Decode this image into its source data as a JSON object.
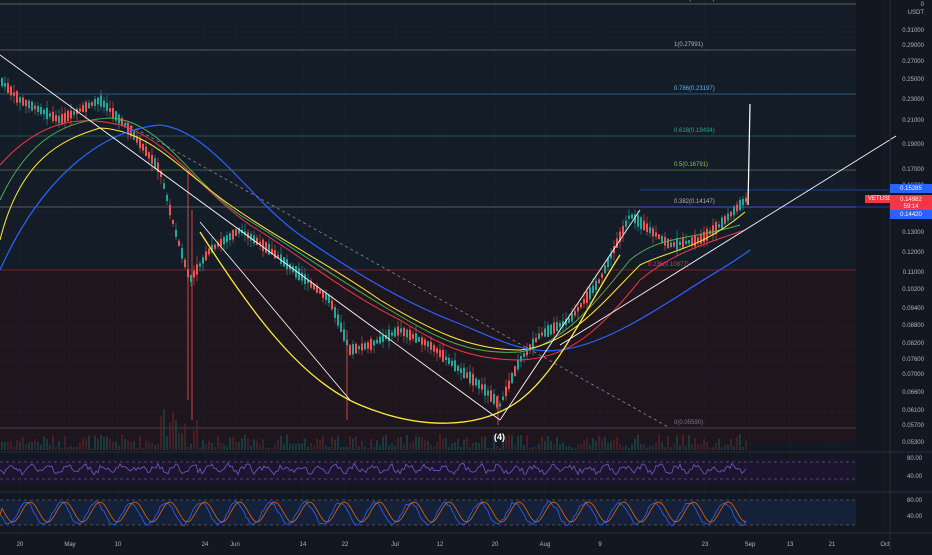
{
  "chart": {
    "currency": "USDT",
    "symbol": "VETUSDT",
    "price_axis": [
      "0.31000",
      "0.29000",
      "0.27000",
      "0.25000",
      "0.23000",
      "0.21000",
      "0.19000",
      "0.17000",
      "0.16000",
      "0.14000",
      "0.13000",
      "0.12000",
      "0.11000",
      "0.10200",
      "0.09400",
      "0.08800",
      "0.08200",
      "0.07600",
      "0.07000",
      "0.06600",
      "0.06100",
      "0.05700",
      "0.05300"
    ],
    "price_axis_top": "0",
    "time_axis": [
      "20",
      "May",
      "10",
      "24",
      "Jun",
      "14",
      "22",
      "Jul",
      "12",
      "20",
      "Aug",
      "9",
      "23",
      "Sep",
      "13",
      "21",
      "Oct"
    ],
    "fib_levels": [
      {
        "label": "1.272(0.34085)",
        "color": "#a5d6a7"
      },
      {
        "label": "1(0.27991)",
        "color": "#b2b5be"
      },
      {
        "label": "0.786(0.23197)",
        "color": "#64b5f6"
      },
      {
        "label": "0.618(0.19434)",
        "color": "#26a69a"
      },
      {
        "label": "0.5(0.16791)",
        "color": "#8bc34a"
      },
      {
        "label": "0.382(0.14147)",
        "color": "#b2b5be"
      },
      {
        "label": "0.236(0.10877)",
        "color": "#f23645"
      },
      {
        "label": "0(0.05590)",
        "color": "#787b86"
      }
    ],
    "price_tags": {
      "upper": {
        "value": "0.15285",
        "color": "#2962ff"
      },
      "current": {
        "value": "0.14982",
        "color": "#f23645"
      },
      "countdown": {
        "value": "59:14",
        "color": "#f23645"
      },
      "lower": {
        "value": "0.14420",
        "color": "#2962ff"
      }
    },
    "wave_label": "(4)",
    "rsi_axis": [
      "80.00",
      "40.00"
    ],
    "stoch_axis": [
      "80.00",
      "40.00"
    ]
  },
  "colors": {
    "background": "#131722",
    "candle_up": "#26a69a",
    "candle_down": "#ef5350",
    "ma_red": "#f23645",
    "ma_yellow": "#ffeb3b",
    "ma_blue": "#2962ff",
    "ma_green": "#4caf50",
    "rsi": "#7e57c2",
    "stoch_k": "#2962ff",
    "stoch_d": "#ff6d00"
  }
}
